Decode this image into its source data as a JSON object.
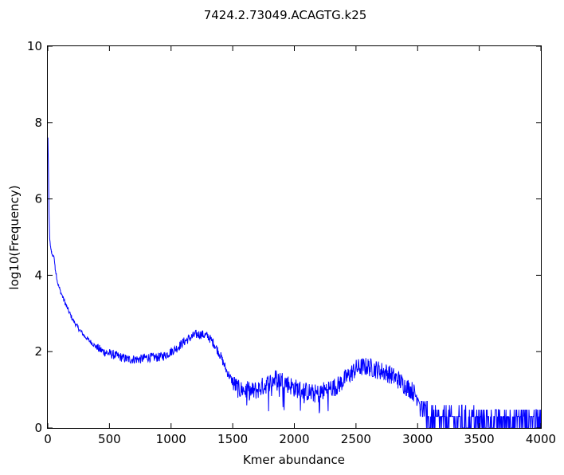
{
  "chart_data": {
    "type": "line",
    "title": "7424.2.73049.ACAGTG.k25",
    "xlabel": "Kmer abundance",
    "ylabel": "log10(Frequency)",
    "xlim": [
      0,
      4000
    ],
    "ylim": [
      0,
      10
    ],
    "x_ticks": [
      0,
      500,
      1000,
      1500,
      2000,
      2500,
      3000,
      3500,
      4000
    ],
    "x_tick_labels": [
      "0",
      "500",
      "1000",
      "1500",
      "2000",
      "2500",
      "3000",
      "3500",
      "4000"
    ],
    "y_ticks": [
      0,
      2,
      4,
      6,
      8,
      10
    ],
    "y_tick_labels": [
      "0",
      "2",
      "4",
      "6",
      "8",
      "10"
    ],
    "grid": false,
    "series": [
      {
        "color": "#0000ff",
        "x": [
          1,
          5,
          10,
          15,
          20,
          30,
          40,
          50,
          60,
          80,
          100,
          150,
          200,
          250,
          300,
          350,
          400,
          450,
          500,
          550,
          600,
          650,
          700,
          750,
          800,
          850,
          900,
          950,
          1000,
          1050,
          1100,
          1150,
          1200,
          1250,
          1300,
          1350,
          1400,
          1450,
          1500,
          1550,
          1600,
          1650,
          1700,
          1750,
          1800,
          1850,
          1900,
          1950,
          2000,
          2050,
          2100,
          2150,
          2200,
          2250,
          2300,
          2350,
          2400,
          2450,
          2500,
          2550,
          2600,
          2650,
          2700,
          2750,
          2800,
          2850,
          2900,
          2950,
          3000,
          3050,
          3100,
          3150,
          3200,
          3250,
          3300,
          3350,
          3400,
          3450,
          3500,
          3550,
          3600,
          3650,
          3700,
          3750,
          3800,
          3850,
          3900,
          3950,
          4000
        ],
        "y": [
          7.6,
          6.8,
          5.6,
          5.0,
          4.8,
          4.6,
          4.5,
          4.5,
          4.2,
          3.8,
          3.6,
          3.2,
          2.85,
          2.6,
          2.4,
          2.25,
          2.1,
          2.0,
          1.95,
          1.9,
          1.85,
          1.8,
          1.8,
          1.8,
          1.85,
          1.85,
          1.85,
          1.9,
          2.0,
          2.1,
          2.25,
          2.35,
          2.45,
          2.45,
          2.4,
          2.2,
          1.9,
          1.5,
          1.2,
          1.0,
          1.0,
          0.95,
          1.0,
          1.1,
          1.2,
          1.3,
          1.25,
          1.15,
          1.05,
          1.0,
          0.95,
          0.9,
          0.9,
          1.0,
          1.05,
          1.1,
          1.25,
          1.4,
          1.55,
          1.6,
          1.6,
          1.55,
          1.5,
          1.45,
          1.35,
          1.25,
          1.1,
          1.0,
          0.8,
          0.3,
          0.15,
          0.15,
          0.15,
          0.15,
          0.15,
          0.15,
          0.2,
          0.2,
          0.2,
          0.2,
          0.2,
          0.2,
          0.2,
          0.2,
          0.2,
          0.2,
          0.2,
          0.2,
          0.2
        ]
      }
    ]
  }
}
